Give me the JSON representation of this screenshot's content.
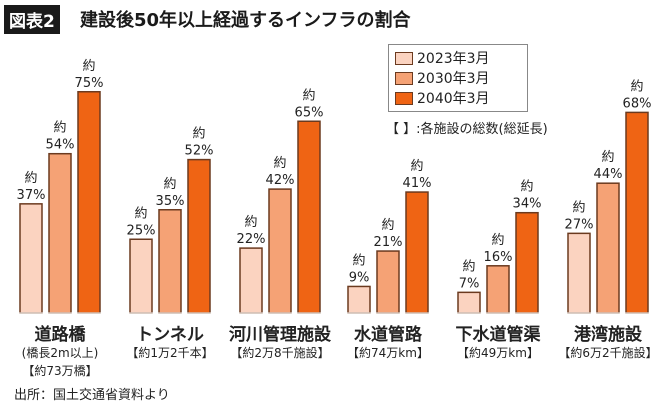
{
  "header": {
    "badge": "図表2",
    "title": "建設後50年以上経過するインフラの割合"
  },
  "note": "【 】:各施設の総数(総延長)",
  "source": "出所：国土交通省資料より",
  "value_prefix": "約",
  "chart_data": {
    "type": "bar",
    "title": "建設後50年以上経過するインフラの割合",
    "categories": [
      "道路橋",
      "トンネル",
      "河川管理施設",
      "水道管路",
      "下水道管渠",
      "港湾施設"
    ],
    "category_notes": [
      [
        "(橋長2m以上)",
        "【約73万橋】"
      ],
      [
        "【約1万2千本】"
      ],
      [
        "【約2万8千施設】"
      ],
      [
        "【約74万km】"
      ],
      [
        "【約49万km】"
      ],
      [
        "【約6万2千施設】"
      ]
    ],
    "series": [
      {
        "name": "2023年3月",
        "color": "#fbd3c0",
        "values": [
          37,
          25,
          22,
          9,
          7,
          27
        ]
      },
      {
        "name": "2030年3月",
        "color": "#f5a275",
        "values": [
          54,
          35,
          42,
          21,
          16,
          44
        ]
      },
      {
        "name": "2040年3月",
        "color": "#ef6414",
        "values": [
          75,
          52,
          65,
          41,
          34,
          68
        ]
      }
    ],
    "unit": "%",
    "ylim": [
      0,
      80
    ],
    "grid": false,
    "legend": "top-right",
    "bar_border": "#6b3a1f"
  }
}
